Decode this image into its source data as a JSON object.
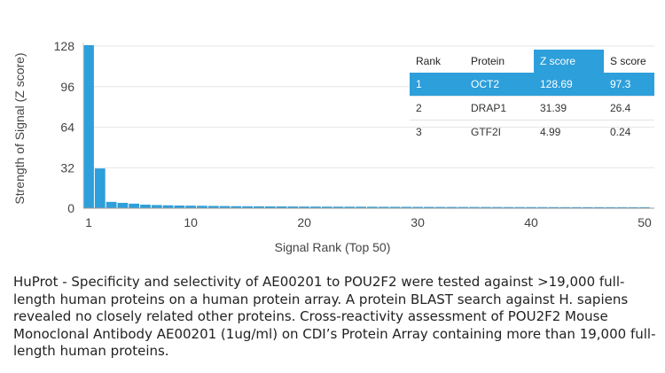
{
  "chart_data": {
    "type": "bar",
    "xlabel": "Signal Rank (Top 50)",
    "ylabel": "Strength of Signal (Z score)",
    "x_ticks": [
      1,
      10,
      20,
      30,
      40,
      50
    ],
    "y_ticks": [
      0,
      32,
      64,
      96,
      128
    ],
    "xlim": [
      1,
      50
    ],
    "ylim": [
      0,
      128
    ],
    "bar_color": "#2d9fdb",
    "ranks": [
      1,
      2,
      3,
      4,
      5,
      6,
      7,
      8,
      9,
      10,
      11,
      12,
      13,
      14,
      15,
      16,
      17,
      18,
      19,
      20,
      21,
      22,
      23,
      24,
      25,
      26,
      27,
      28,
      29,
      30,
      31,
      32,
      33,
      34,
      35,
      36,
      37,
      38,
      39,
      40,
      41,
      42,
      43,
      44,
      45,
      46,
      47,
      48,
      49,
      50
    ],
    "values": [
      128.69,
      31.39,
      4.99,
      4.2,
      3.6,
      2.8,
      2.5,
      2.3,
      2.1,
      2.0,
      1.9,
      1.8,
      1.7,
      1.6,
      1.55,
      1.5,
      1.45,
      1.4,
      1.35,
      1.3,
      1.28,
      1.25,
      1.22,
      1.2,
      1.18,
      1.15,
      1.12,
      1.1,
      1.08,
      1.05,
      1.03,
      1.0,
      0.98,
      0.96,
      0.95,
      0.93,
      0.92,
      0.9,
      0.89,
      0.88,
      0.87,
      0.86,
      0.85,
      0.84,
      0.83,
      0.82,
      0.81,
      0.8,
      0.79,
      0.78
    ]
  },
  "table": {
    "headers": [
      "Rank",
      "Protein",
      "Z score",
      "S score"
    ],
    "rows": [
      [
        "1",
        "OCT2",
        "128.69",
        "97.3"
      ],
      [
        "2",
        "DRAP1",
        "31.39",
        "26.4"
      ],
      [
        "3",
        "GTF2I",
        "4.99",
        "0.24"
      ]
    ],
    "highlight_color": "#2d9fdb"
  },
  "caption": "HuProt  -  Specificity and selectivity of AE00201 to POU2F2 were tested against >19,000 full-length human proteins on a human protein array. A protein BLAST search against H. sapiens revealed no closely related other proteins. Cross-reactivity assessment of POU2F2 Mouse Monoclonal Antibody AE00201 (1ug/ml) on CDI’s Protein Array containing more than 19,000 full-length human proteins."
}
